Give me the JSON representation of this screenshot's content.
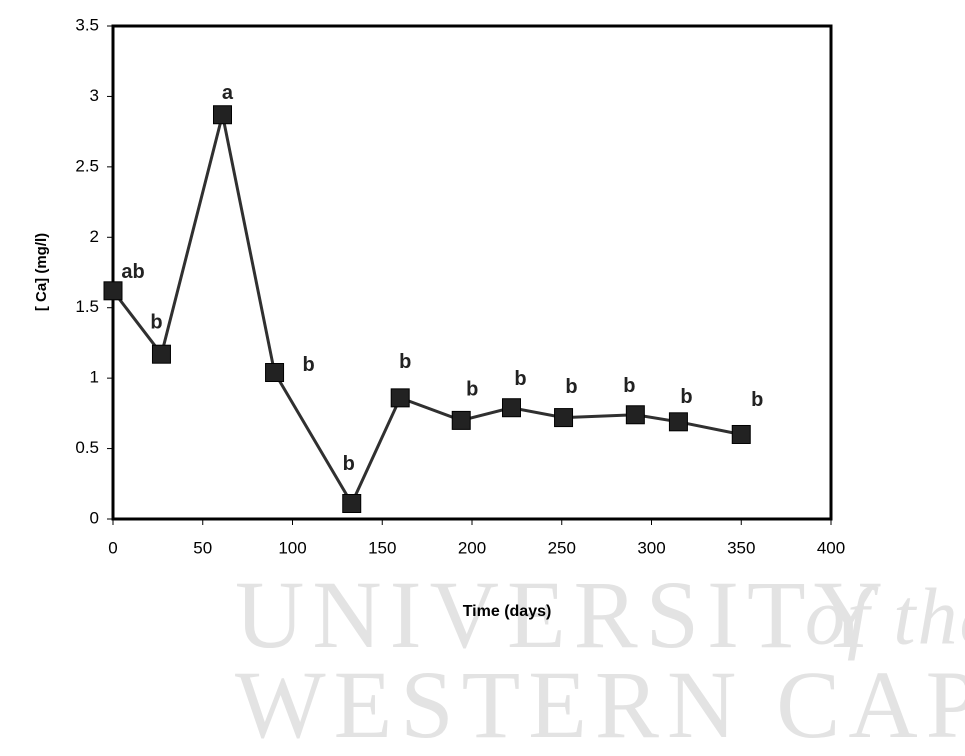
{
  "chart_data": {
    "type": "line",
    "y_label": "[ Ca] (mg/l)",
    "x_label": "Time (days)",
    "x": [
      0,
      27,
      61,
      90,
      133,
      160,
      194,
      222,
      251,
      291,
      315,
      350
    ],
    "values": [
      1.62,
      1.17,
      2.87,
      1.04,
      0.11,
      0.86,
      0.7,
      0.79,
      0.72,
      0.74,
      0.69,
      0.6
    ],
    "annotations": [
      "ab",
      "b",
      "a",
      "b",
      "b",
      "b",
      "b",
      "b",
      "b",
      "b",
      "b",
      "b"
    ],
    "color": "#303030",
    "xlim": [
      0,
      400
    ],
    "ylim": [
      0,
      3.5
    ],
    "xticks": [
      0,
      50,
      100,
      150,
      200,
      250,
      300,
      350,
      400
    ],
    "yticks": [
      0,
      0.5,
      1,
      1.5,
      2,
      2.5,
      3,
      3.5
    ],
    "watermark": [
      "UNIVERSITY",
      "of the",
      "WESTERN CAPE"
    ]
  }
}
